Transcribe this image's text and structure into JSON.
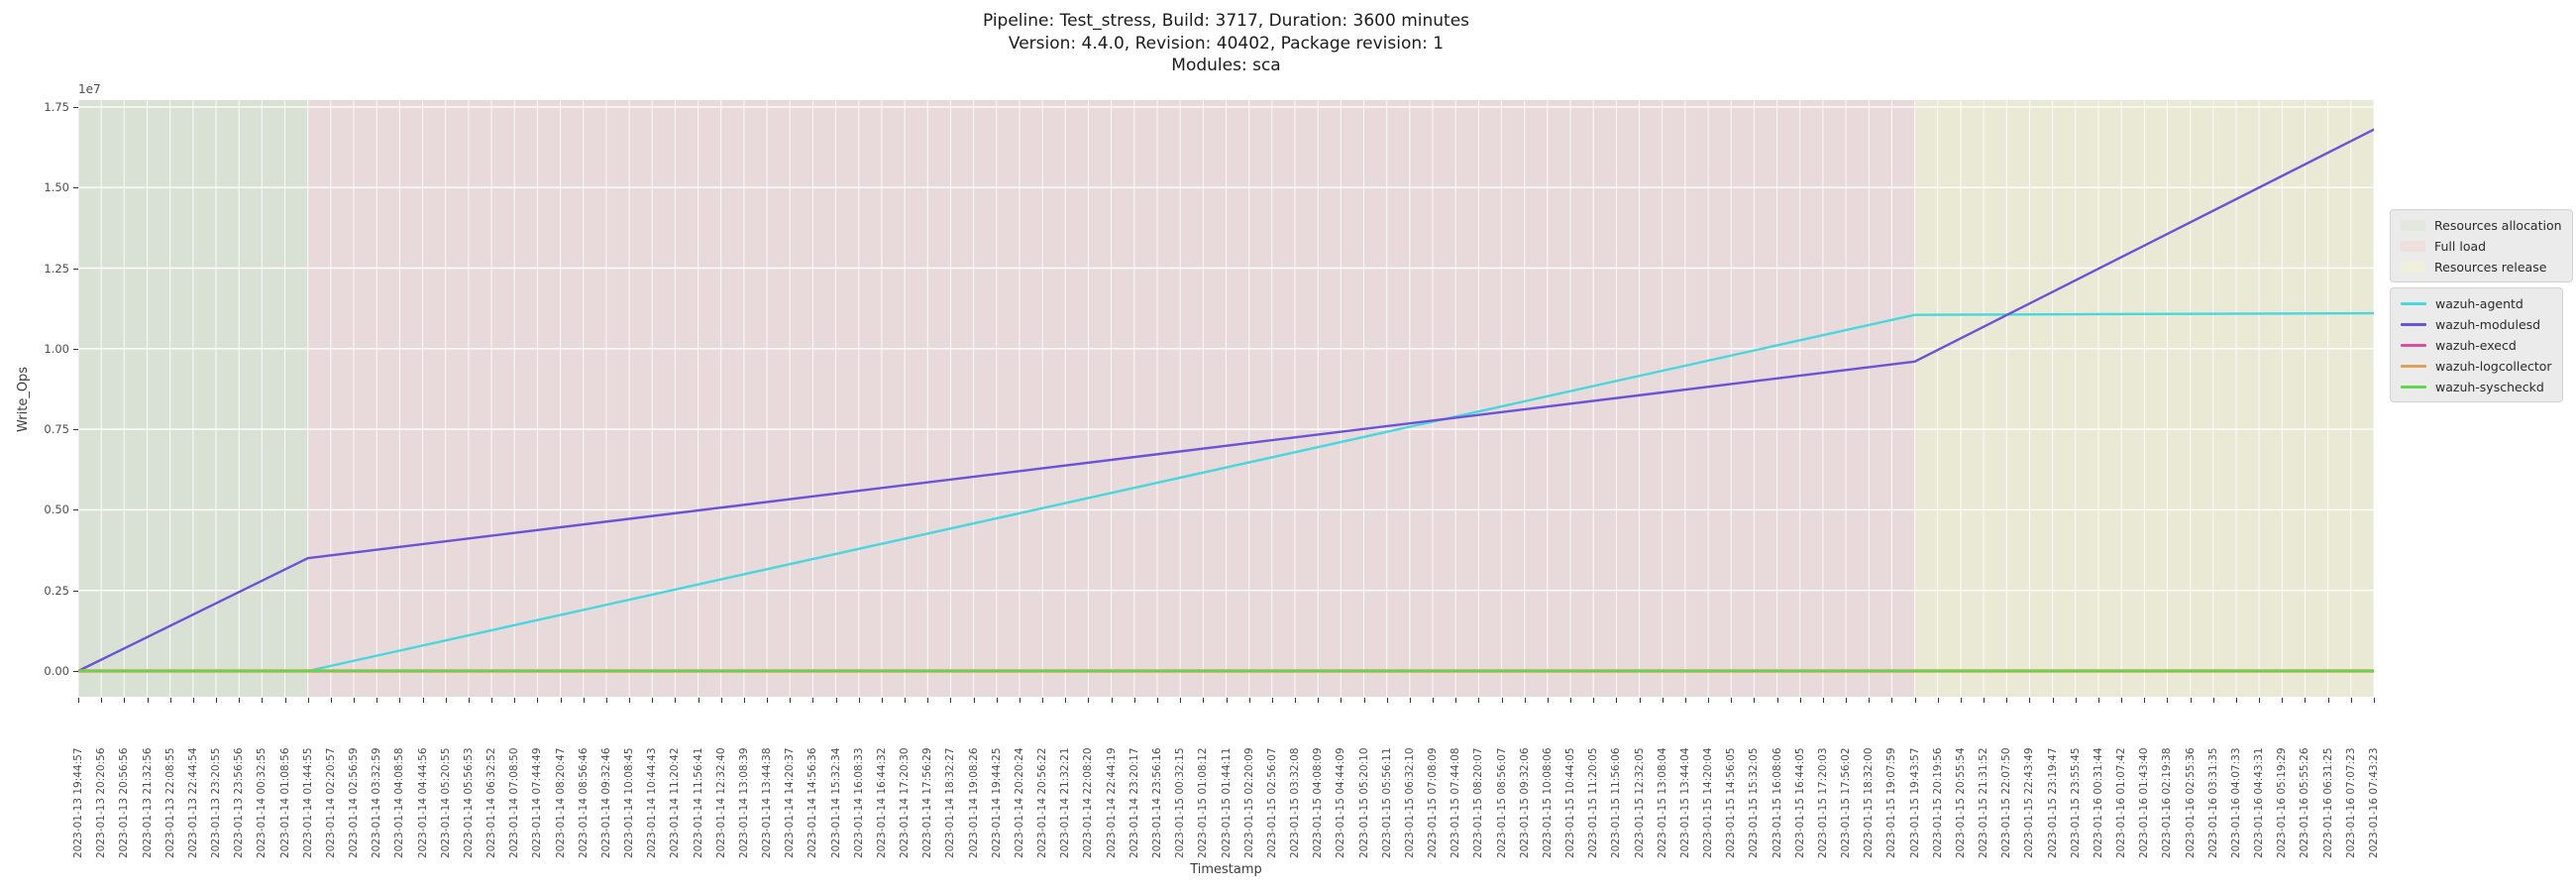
{
  "header": {
    "title_line1": "Pipeline: Test_stress, Build: 3717, Duration: 3600 minutes",
    "title_line2": "Version: 4.4.0, Revision: 40402, Package revision: 1",
    "title_line3": "Modules: sca"
  },
  "chart_data": {
    "type": "line",
    "title": "Pipeline: Test_stress, Build: 3717, Duration: 3600 minutes | Version: 4.4.0, Revision: 40402, Package revision: 1 | Modules: sca",
    "xlabel": "Timestamp",
    "ylabel": "Write_Ops",
    "y_offset_label": "1e7",
    "ytick_labels": [
      "0.00",
      "0.25",
      "0.50",
      "0.75",
      "1.00",
      "1.25",
      "1.50",
      "1.75"
    ],
    "ytick_step": 2500000,
    "ylim": [
      -800000,
      17700000
    ],
    "grid": true,
    "grid_color": "#ffffff",
    "legend_position": "right",
    "regions": [
      {
        "label": "Resources allocation",
        "color": "#d9e1d5",
        "legend_color": "#e2e8de",
        "from_tick": 0,
        "to_tick": 10
      },
      {
        "label": "Full load",
        "color": "#e8d9da",
        "legend_color": "#f0dfdf",
        "from_tick": 10,
        "to_tick": 80
      },
      {
        "label": "Resources release",
        "color": "#e9e9d6",
        "legend_color": "#eff0dc",
        "from_tick": 80,
        "to_tick": 100
      }
    ],
    "series": [
      {
        "name": "wazuh-agentd",
        "color": "#48d7dd",
        "width": 2.4,
        "points": [
          [
            0,
            0
          ],
          [
            10,
            0
          ],
          [
            80,
            11050000
          ],
          [
            100,
            11100000
          ]
        ]
      },
      {
        "name": "wazuh-modulesd",
        "color": "#6a52d9",
        "width": 2.4,
        "points": [
          [
            0,
            0
          ],
          [
            10,
            3500000
          ],
          [
            80,
            9600000
          ],
          [
            100,
            16800000
          ]
        ]
      },
      {
        "name": "wazuh-execd",
        "color": "#d94fa6",
        "width": 2.0,
        "points": [
          [
            0,
            0
          ],
          [
            100,
            0
          ]
        ]
      },
      {
        "name": "wazuh-logcollector",
        "color": "#dda255",
        "width": 3.4,
        "points": [
          [
            0,
            0
          ],
          [
            100,
            0
          ]
        ]
      },
      {
        "name": "wazuh-syscheckd",
        "color": "#5fd74f",
        "width": 2.2,
        "points": [
          [
            0,
            0
          ],
          [
            100,
            0
          ]
        ]
      }
    ],
    "x_tick_labels": [
      "2023-01-13 19:44:57",
      "2023-01-13 20:20:56",
      "2023-01-13 20:56:56",
      "2023-01-13 21:32:56",
      "2023-01-13 22:08:55",
      "2023-01-13 22:44:54",
      "2023-01-13 23:20:55",
      "2023-01-13 23:56:56",
      "2023-01-14 00:32:55",
      "2023-01-14 01:08:56",
      "2023-01-14 01:44:55",
      "2023-01-14 02:20:57",
      "2023-01-14 02:56:59",
      "2023-01-14 03:32:59",
      "2023-01-14 04:08:58",
      "2023-01-14 04:44:56",
      "2023-01-14 05:20:55",
      "2023-01-14 05:56:53",
      "2023-01-14 06:32:52",
      "2023-01-14 07:08:50",
      "2023-01-14 07:44:49",
      "2023-01-14 08:20:47",
      "2023-01-14 08:56:46",
      "2023-01-14 09:32:46",
      "2023-01-14 10:08:45",
      "2023-01-14 10:44:43",
      "2023-01-14 11:20:42",
      "2023-01-14 11:56:41",
      "2023-01-14 12:32:40",
      "2023-01-14 13:08:39",
      "2023-01-14 13:44:38",
      "2023-01-14 14:20:37",
      "2023-01-14 14:56:36",
      "2023-01-14 15:32:34",
      "2023-01-14 16:08:33",
      "2023-01-14 16:44:32",
      "2023-01-14 17:20:30",
      "2023-01-14 17:56:29",
      "2023-01-14 18:32:27",
      "2023-01-14 19:08:26",
      "2023-01-14 19:44:25",
      "2023-01-14 20:20:24",
      "2023-01-14 20:56:22",
      "2023-01-14 21:32:21",
      "2023-01-14 22:08:20",
      "2023-01-14 22:44:19",
      "2023-01-14 23:20:17",
      "2023-01-14 23:56:16",
      "2023-01-15 00:32:15",
      "2023-01-15 01:08:12",
      "2023-01-15 01:44:11",
      "2023-01-15 02:20:09",
      "2023-01-15 02:56:07",
      "2023-01-15 03:32:08",
      "2023-01-15 04:08:09",
      "2023-01-15 04:44:09",
      "2023-01-15 05:20:10",
      "2023-01-15 05:56:11",
      "2023-01-15 06:32:10",
      "2023-01-15 07:08:09",
      "2023-01-15 07:44:08",
      "2023-01-15 08:20:07",
      "2023-01-15 08:56:07",
      "2023-01-15 09:32:06",
      "2023-01-15 10:08:06",
      "2023-01-15 10:44:05",
      "2023-01-15 11:20:05",
      "2023-01-15 11:56:06",
      "2023-01-15 12:32:05",
      "2023-01-15 13:08:04",
      "2023-01-15 13:44:04",
      "2023-01-15 14:20:04",
      "2023-01-15 14:56:05",
      "2023-01-15 15:32:05",
      "2023-01-15 16:08:06",
      "2023-01-15 16:44:05",
      "2023-01-15 17:20:03",
      "2023-01-15 17:56:02",
      "2023-01-15 18:32:00",
      "2023-01-15 19:07:59",
      "2023-01-15 19:43:57",
      "2023-01-15 20:19:56",
      "2023-01-15 20:55:54",
      "2023-01-15 21:31:52",
      "2023-01-15 22:07:50",
      "2023-01-15 22:43:49",
      "2023-01-15 23:19:47",
      "2023-01-15 23:55:45",
      "2023-01-16 00:31:44",
      "2023-01-16 01:07:42",
      "2023-01-16 01:43:40",
      "2023-01-16 02:19:38",
      "2023-01-16 02:55:36",
      "2023-01-16 03:31:35",
      "2023-01-16 04:07:33",
      "2023-01-16 04:43:31",
      "2023-01-16 05:19:29",
      "2023-01-16 05:55:26",
      "2023-01-16 06:31:25",
      "2023-01-16 07:07:23",
      "2023-01-16 07:43:23"
    ]
  }
}
